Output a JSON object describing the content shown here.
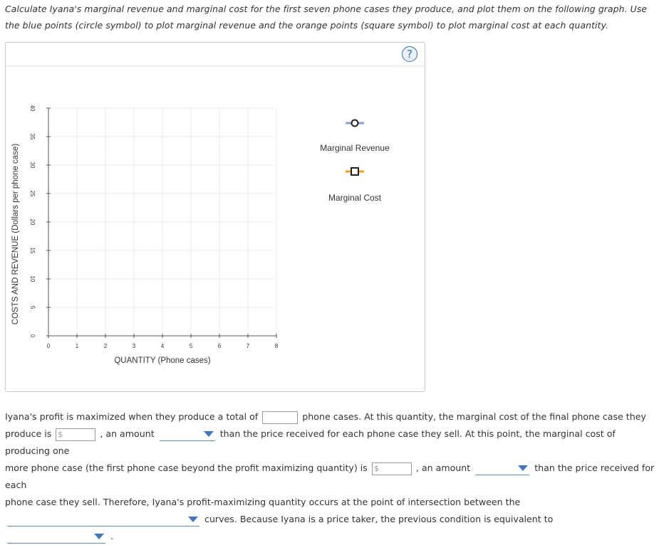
{
  "instructions": "Calculate Iyana's marginal revenue and marginal cost for the first seven phone cases they produce, and plot them on the following graph. Use the blue points (circle symbol) to plot marginal revenue and the orange points (square symbol) to plot marginal cost at each quantity.",
  "help_label": "?",
  "chart_data": {
    "type": "scatter",
    "xlabel": "QUANTITY (Phone cases)",
    "ylabel": "COSTS AND REVENUE (Dollars per phone case)",
    "xlim": [
      0,
      8
    ],
    "ylim": [
      0,
      40
    ],
    "x_ticks": [
      "0",
      "1",
      "2",
      "3",
      "4",
      "5",
      "6",
      "7",
      "8"
    ],
    "y_ticks": [
      "0",
      "5",
      "10",
      "15",
      "20",
      "25",
      "30",
      "35",
      "40"
    ],
    "grid": true,
    "series": [
      {
        "name": "Marginal Revenue",
        "marker": "circle",
        "color": "#2f6da8",
        "values": []
      },
      {
        "name": "Marginal Cost",
        "marker": "square",
        "color": "#f5a01a",
        "values": []
      }
    ]
  },
  "legend": {
    "mr_label": "Marginal Revenue",
    "mc_label": "Marginal Cost",
    "mr_icon": "blue-circle-line",
    "mc_icon": "orange-square-line"
  },
  "paragraph": {
    "p1": "Iyana's profit is maximized when they produce a total of",
    "p2": "phone cases. At this quantity, the marginal cost of the final phone case they",
    "p3": "produce is",
    "p4": ", an amount",
    "p5": "than the price received for each phone case they sell. At this point, the marginal cost of producing one",
    "p6": "more phone case (the first phone case beyond the profit maximizing quantity) is",
    "p7": ", an amount",
    "p8": "than the price received for each",
    "p9": "phone case they sell. Therefore, Iyana's profit-maximizing quantity occurs at the point of intersection between the",
    "p10": "curves. Because Iyana is a price taker, the previous condition is equivalent to",
    "p11": ".",
    "dollar_sign": "$"
  }
}
